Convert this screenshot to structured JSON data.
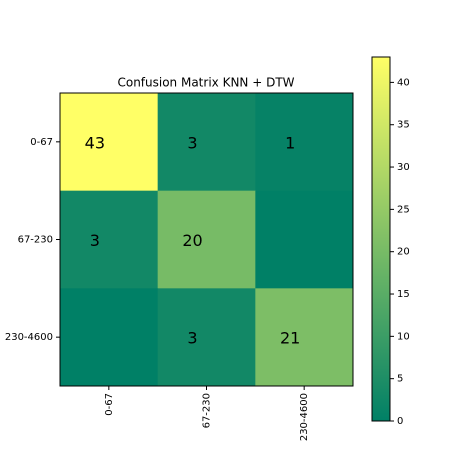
{
  "chart_data": {
    "type": "heatmap",
    "title": "Confusion Matrix KNN + DTW",
    "x_categories": [
      "0-67",
      "67-230",
      "230-4600"
    ],
    "y_categories": [
      "0-67",
      "67-230",
      "230-4600"
    ],
    "values": [
      [
        43,
        3,
        1
      ],
      [
        3,
        20,
        0
      ],
      [
        0,
        3,
        21
      ]
    ],
    "value_labels": [
      [
        "43",
        "3",
        "1"
      ],
      [
        "3",
        "20",
        null
      ],
      [
        null,
        "3",
        "21"
      ]
    ],
    "colormap": "summer",
    "clim": [
      0,
      43
    ],
    "cticks": [
      0,
      5,
      10,
      15,
      20,
      25,
      30,
      35,
      40
    ]
  }
}
